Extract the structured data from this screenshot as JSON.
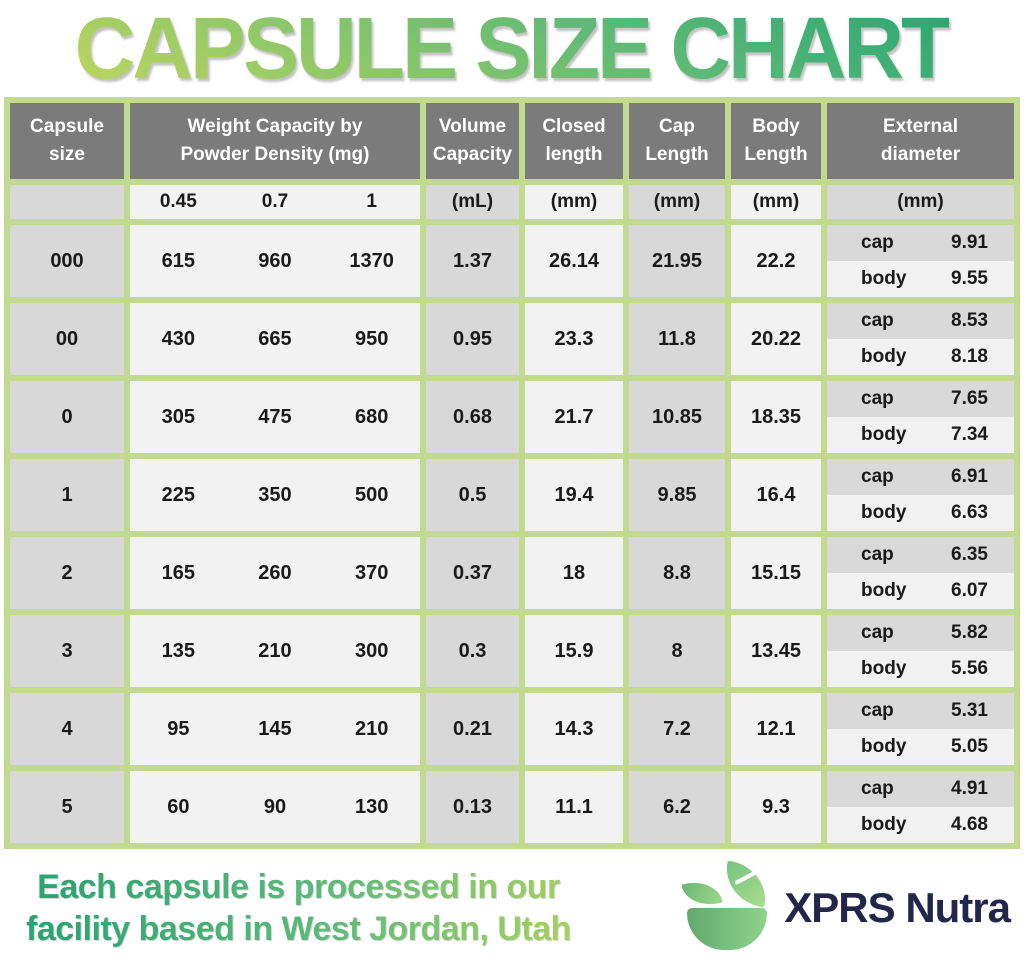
{
  "title": "CAPSULE SIZE CHART",
  "table": {
    "headers": {
      "capsule_size": "Capsule size",
      "weight": "Weight Capacity by Powder Density (mg)",
      "volume": "Volume Capacity",
      "closed": "Closed length",
      "cap": "Cap Length",
      "body": "Body Length",
      "external": "External diameter"
    },
    "units": {
      "density_045": "0.45",
      "density_07": "0.7",
      "density_1": "1",
      "volume": "(mL)",
      "closed": "(mm)",
      "cap": "(mm)",
      "body": "(mm)",
      "external": "(mm)"
    },
    "sub_labels": {
      "cap": "cap",
      "body": "body"
    },
    "rows": [
      {
        "size": "000",
        "w045": "615",
        "w07": "960",
        "w1": "1370",
        "volume": "1.37",
        "closed": "26.14",
        "cap_length": "21.95",
        "body_length": "22.2",
        "ext_cap": "9.91",
        "ext_body": "9.55"
      },
      {
        "size": "00",
        "w045": "430",
        "w07": "665",
        "w1": "950",
        "volume": "0.95",
        "closed": "23.3",
        "cap_length": "11.8",
        "body_length": "20.22",
        "ext_cap": "8.53",
        "ext_body": "8.18"
      },
      {
        "size": "0",
        "w045": "305",
        "w07": "475",
        "w1": "680",
        "volume": "0.68",
        "closed": "21.7",
        "cap_length": "10.85",
        "body_length": "18.35",
        "ext_cap": "7.65",
        "ext_body": "7.34"
      },
      {
        "size": "1",
        "w045": "225",
        "w07": "350",
        "w1": "500",
        "volume": "0.5",
        "closed": "19.4",
        "cap_length": "9.85",
        "body_length": "16.4",
        "ext_cap": "6.91",
        "ext_body": "6.63"
      },
      {
        "size": "2",
        "w045": "165",
        "w07": "260",
        "w1": "370",
        "volume": "0.37",
        "closed": "18",
        "cap_length": "8.8",
        "body_length": "15.15",
        "ext_cap": "6.35",
        "ext_body": "6.07"
      },
      {
        "size": "3",
        "w045": "135",
        "w07": "210",
        "w1": "300",
        "volume": "0.3",
        "closed": "15.9",
        "cap_length": "8",
        "body_length": "13.45",
        "ext_cap": "5.82",
        "ext_body": "5.56"
      },
      {
        "size": "4",
        "w045": "95",
        "w07": "145",
        "w1": "210",
        "volume": "0.21",
        "closed": "14.3",
        "cap_length": "7.2",
        "body_length": "12.1",
        "ext_cap": "5.31",
        "ext_body": "5.05"
      },
      {
        "size": "5",
        "w045": "60",
        "w07": "90",
        "w1": "130",
        "volume": "0.13",
        "closed": "11.1",
        "cap_length": "6.2",
        "body_length": "9.3",
        "ext_cap": "4.91",
        "ext_body": "4.68"
      }
    ]
  },
  "footer": {
    "tagline_line1": "Each capsule is processed in our",
    "tagline_line2": "facility based in West Jordan, Utah",
    "brand": "XPRS Nutra"
  },
  "colors": {
    "border_green": "#c2da8f",
    "header_gray": "#7b7b7b",
    "cell_gray": "#d8d8d8",
    "cell_light": "#f2f2f2",
    "title_green_dark": "#2ea873",
    "title_green_light": "#b9d45e",
    "brand_navy": "#23264a"
  },
  "chart_data": {
    "type": "table",
    "title": "CAPSULE SIZE CHART",
    "columns": [
      "Capsule size",
      "Weight Capacity @ 0.45 density (mg)",
      "Weight Capacity @ 0.7 density (mg)",
      "Weight Capacity @ 1 density (mg)",
      "Volume Capacity (mL)",
      "Closed length (mm)",
      "Cap Length (mm)",
      "Body Length (mm)",
      "External diameter cap (mm)",
      "External diameter body (mm)"
    ],
    "rows": [
      [
        "000",
        615,
        960,
        1370,
        1.37,
        26.14,
        21.95,
        22.2,
        9.91,
        9.55
      ],
      [
        "00",
        430,
        665,
        950,
        0.95,
        23.3,
        11.8,
        20.22,
        8.53,
        8.18
      ],
      [
        "0",
        305,
        475,
        680,
        0.68,
        21.7,
        10.85,
        18.35,
        7.65,
        7.34
      ],
      [
        "1",
        225,
        350,
        500,
        0.5,
        19.4,
        9.85,
        16.4,
        6.91,
        6.63
      ],
      [
        "2",
        165,
        260,
        370,
        0.37,
        18,
        8.8,
        15.15,
        6.35,
        6.07
      ],
      [
        "3",
        135,
        210,
        300,
        0.3,
        15.9,
        8,
        13.45,
        5.82,
        5.56
      ],
      [
        "4",
        95,
        145,
        210,
        0.21,
        14.3,
        7.2,
        12.1,
        5.31,
        5.05
      ],
      [
        "5",
        60,
        90,
        130,
        0.13,
        11.1,
        6.2,
        9.3,
        4.91,
        4.68
      ]
    ]
  }
}
